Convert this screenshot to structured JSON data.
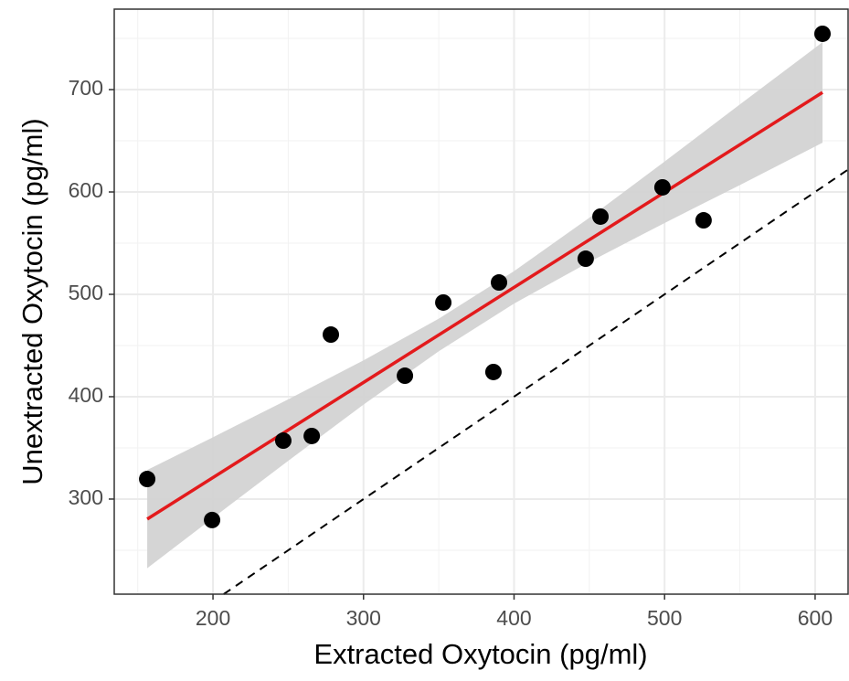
{
  "chart_data": {
    "type": "scatter",
    "x_label": "Extracted Oxytocin (pg/ml)",
    "y_label": "Unextracted Oxytocin (pg/ml)",
    "xlim": [
      134.4,
      621.9
    ],
    "ylim": [
      207.1,
      778.6
    ],
    "xticks": [
      200,
      300,
      400,
      500,
      600
    ],
    "yticks": [
      300,
      400,
      500,
      600,
      700
    ],
    "x_minor_grid": [
      150,
      250,
      350,
      450,
      550
    ],
    "y_minor_grid": [
      250,
      350,
      450,
      550,
      650,
      750
    ],
    "grid": true,
    "points": {
      "color": "#000000",
      "x": [
        156.3,
        199.4,
        246.7,
        265.6,
        278.3,
        327.5,
        353,
        386.3,
        390,
        447.6,
        457.4,
        498.6,
        525.9,
        604.9
      ],
      "y": [
        319.6,
        279.5,
        357.1,
        361.6,
        460.7,
        420.5,
        492,
        424.1,
        511.6,
        534.8,
        575.9,
        604.5,
        572.3,
        754.5
      ]
    },
    "fit_line": {
      "color": "#e31a1c",
      "x": [
        156.3,
        604.9
      ],
      "y": [
        280.4,
        697.2
      ]
    },
    "confidence_band": {
      "color": "#d3d3d3",
      "x": [
        156.3,
        200,
        250,
        300,
        350,
        400,
        450,
        500,
        550,
        604.9
      ],
      "lower": [
        232.4,
        281.6,
        337.4,
        392.3,
        444.4,
        490.9,
        531.6,
        569.7,
        606.7,
        648.1
      ],
      "upper": [
        328.4,
        360.4,
        397.4,
        435.5,
        476.2,
        522.7,
        574.8,
        629.7,
        685.5,
        746.3
      ]
    },
    "reference_line": {
      "slope": 1,
      "intercept": 0,
      "style": "dashed",
      "color": "#000000"
    }
  }
}
